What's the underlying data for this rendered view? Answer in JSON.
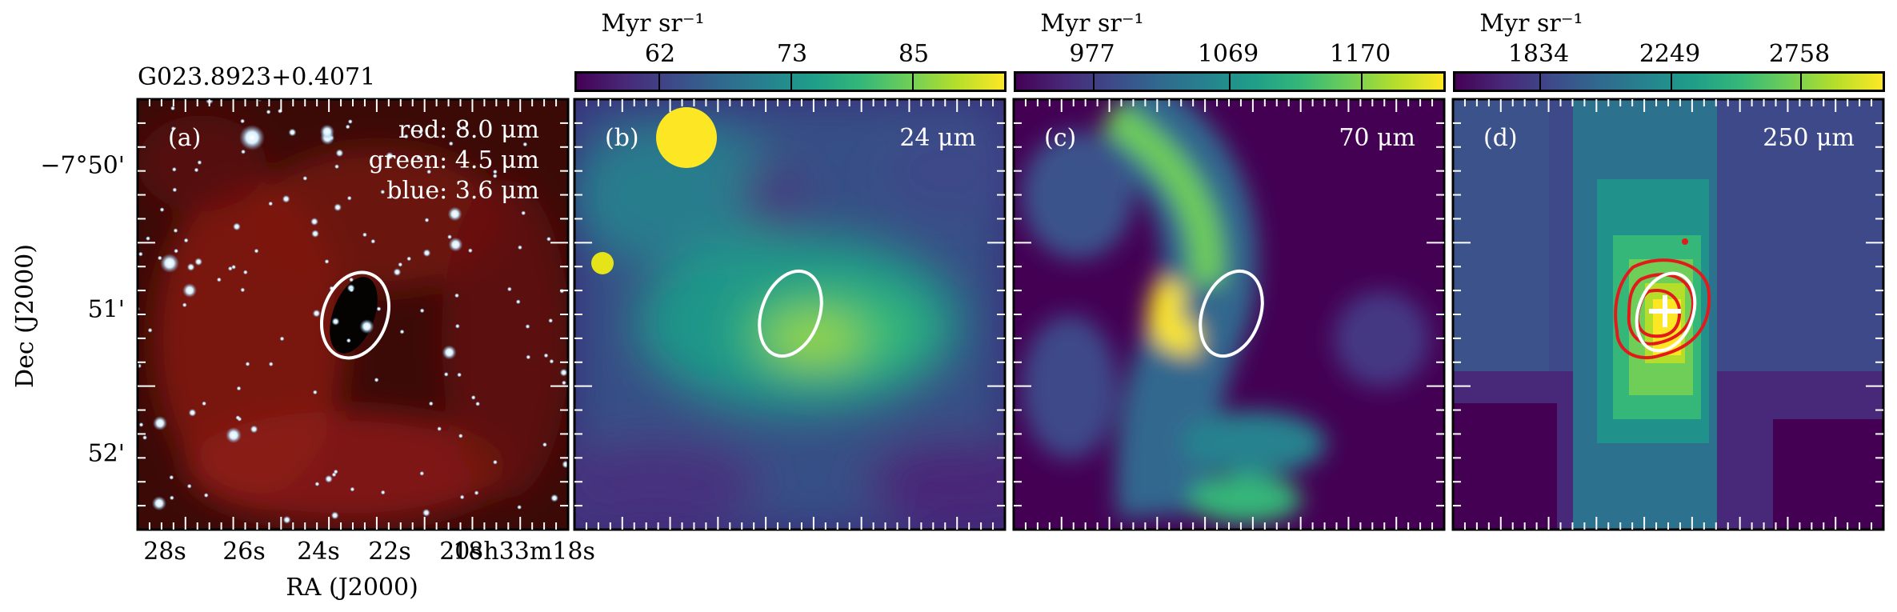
{
  "figure": {
    "source_name": "G023.8923+0.4071",
    "y_axis_label": "Dec (J2000)",
    "x_axis_label": "RA (J2000)",
    "y_ticks": [
      "−7°50'",
      "51'",
      "52'"
    ],
    "x_ticks": [
      "28s",
      "26s",
      "24s",
      "22s",
      "20s",
      "18h33m18s"
    ]
  },
  "panels": [
    {
      "id": "a",
      "tag": "(a)",
      "legend": [
        "red: 8.0 μm",
        "green: 4.5 μm",
        "blue: 3.6 μm"
      ]
    },
    {
      "id": "b",
      "tag": "(b)",
      "band": "24 μm",
      "colorbar": {
        "unit": "Myr sr⁻¹",
        "ticks": [
          "62",
          "73",
          "85"
        ]
      }
    },
    {
      "id": "c",
      "tag": "(c)",
      "band": "70 μm",
      "colorbar": {
        "unit": "Myr sr⁻¹",
        "ticks": [
          "977",
          "1069",
          "1170"
        ]
      }
    },
    {
      "id": "d",
      "tag": "(d)",
      "band": "250 μm",
      "colorbar": {
        "unit": "Myr sr⁻¹",
        "ticks": [
          "1834",
          "2249",
          "2758"
        ]
      }
    }
  ],
  "colors": {
    "viridis_dark": "#440154",
    "viridis_mid": "#21918c",
    "viridis_bright": "#fde725",
    "contour": "#e31a1c",
    "ellipse": "#ffffff"
  }
}
